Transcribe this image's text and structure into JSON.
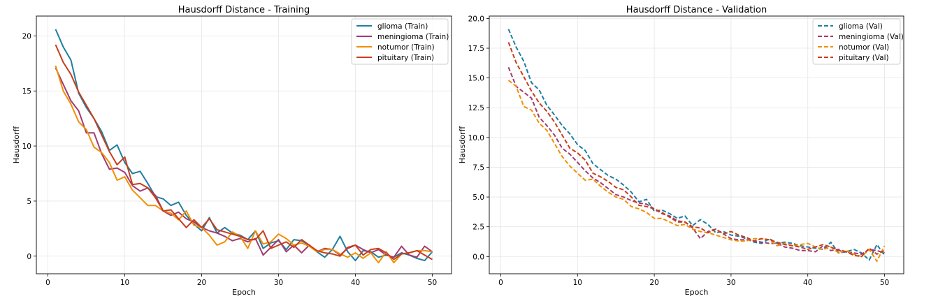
{
  "chart_data": [
    {
      "type": "line",
      "title": "Hausdorff Distance - Training",
      "xlabel": "Epoch",
      "ylabel": "Hausdorff",
      "xlim": [
        -1.5,
        52.5
      ],
      "ylim": [
        -1.6,
        21.8
      ],
      "xticks": [
        0,
        10,
        20,
        30,
        40,
        50
      ],
      "yticks": [
        0,
        5,
        10,
        15,
        20
      ],
      "grid": true,
      "legend_position": "top-right",
      "line_style": "solid",
      "x": [
        1,
        2,
        3,
        4,
        5,
        6,
        7,
        8,
        9,
        10,
        11,
        12,
        13,
        14,
        15,
        16,
        17,
        18,
        19,
        20,
        21,
        22,
        23,
        24,
        25,
        26,
        27,
        28,
        29,
        30,
        31,
        32,
        33,
        34,
        35,
        36,
        37,
        38,
        39,
        40,
        41,
        42,
        43,
        44,
        45,
        46,
        47,
        48,
        49,
        50
      ],
      "series": [
        {
          "name": "glioma (Train)",
          "color": "#1f7ea1",
          "values": [
            20.6,
            19.0,
            17.8,
            14.8,
            13.5,
            12.5,
            11.3,
            9.6,
            10.1,
            8.5,
            7.5,
            7.7,
            6.6,
            5.4,
            5.2,
            4.6,
            4.9,
            3.7,
            2.9,
            2.3,
            3.5,
            2.1,
            2.6,
            2.1,
            1.9,
            1.5,
            2.3,
            0.7,
            1.2,
            1.4,
            0.6,
            1.5,
            1.4,
            1.0,
            0.4,
            -0.1,
            0.6,
            1.8,
            0.4,
            -0.4,
            0.5,
            0.4,
            -0.1,
            0.1,
            -0.1,
            0.3,
            0.1,
            -0.2,
            -0.4,
            0.4
          ]
        },
        {
          "name": "meningioma (Train)",
          "color": "#a23b72",
          "values": [
            17.1,
            15.6,
            14.1,
            13.2,
            11.2,
            11.2,
            9.3,
            7.9,
            8.0,
            7.6,
            6.4,
            5.9,
            6.2,
            5.5,
            4.1,
            3.7,
            4.0,
            3.4,
            3.1,
            2.6,
            2.3,
            2.1,
            1.8,
            1.4,
            1.6,
            1.3,
            1.6,
            0.1,
            0.8,
            1.5,
            0.4,
            1.0,
            0.3,
            1.0,
            0.4,
            0.7,
            0.6,
            0.1,
            0.7,
            1.0,
            0.6,
            0.3,
            0.6,
            0.1,
            -0.1,
            0.9,
            0.1,
            -0.1,
            0.9,
            0.4
          ]
        },
        {
          "name": "notumor (Train)",
          "color": "#f18f01",
          "values": [
            17.3,
            15.0,
            13.8,
            12.2,
            11.5,
            9.9,
            9.4,
            8.5,
            6.9,
            7.2,
            6.0,
            5.3,
            4.6,
            4.6,
            4.1,
            3.9,
            3.3,
            4.1,
            2.8,
            2.6,
            1.9,
            1.0,
            1.3,
            2.2,
            1.8,
            0.7,
            2.3,
            1.1,
            1.3,
            2.0,
            1.6,
            1.0,
            1.2,
            0.9,
            0.4,
            0.6,
            0.6,
            0.2,
            -0.1,
            0.3,
            -0.2,
            0.3,
            -0.6,
            0.4,
            -0.6,
            0.2,
            0.3,
            0.5,
            0.5,
            0.4
          ]
        },
        {
          "name": "pituitary (Train)",
          "color": "#c73e1d",
          "values": [
            19.2,
            17.6,
            16.5,
            14.9,
            13.7,
            12.5,
            11.0,
            9.5,
            8.3,
            9.0,
            6.5,
            6.6,
            6.2,
            5.3,
            4.1,
            4.2,
            3.4,
            2.6,
            3.3,
            2.6,
            3.4,
            2.4,
            2.2,
            2.0,
            1.8,
            1.5,
            1.5,
            2.3,
            0.7,
            1.0,
            1.3,
            0.8,
            1.5,
            1.0,
            0.5,
            0.3,
            0.2,
            0.0,
            0.8,
            1.0,
            0.1,
            0.6,
            0.7,
            0.3,
            -0.3,
            0.2,
            0.3,
            0.5,
            0.1,
            -0.3
          ]
        }
      ]
    },
    {
      "type": "line",
      "title": "Hausdorff Distance - Validation",
      "xlabel": "Epoch",
      "ylabel": "Hausdorff",
      "xlim": [
        -1.5,
        52.5
      ],
      "ylim": [
        -1.45,
        20.2
      ],
      "xticks": [
        0,
        10,
        20,
        30,
        40,
        50
      ],
      "yticks": [
        0.0,
        2.5,
        5.0,
        7.5,
        10.0,
        12.5,
        15.0,
        17.5,
        20.0
      ],
      "ytick_labels": [
        "0.0",
        "2.5",
        "5.0",
        "7.5",
        "10.0",
        "12.5",
        "15.0",
        "17.5",
        "20.0"
      ],
      "grid": true,
      "legend_position": "top-right",
      "line_style": "dashed",
      "x": [
        1,
        2,
        3,
        4,
        5,
        6,
        7,
        8,
        9,
        10,
        11,
        12,
        13,
        14,
        15,
        16,
        17,
        18,
        19,
        20,
        21,
        22,
        23,
        24,
        25,
        26,
        27,
        28,
        29,
        30,
        31,
        32,
        33,
        34,
        35,
        36,
        37,
        38,
        39,
        40,
        41,
        42,
        43,
        44,
        45,
        46,
        47,
        48,
        49,
        50
      ],
      "series": [
        {
          "name": "glioma (Val)",
          "color": "#1f7ea1",
          "values": [
            19.1,
            17.6,
            16.4,
            14.6,
            14.0,
            12.7,
            11.9,
            11.0,
            10.3,
            9.4,
            8.9,
            7.8,
            7.3,
            6.8,
            6.5,
            6.0,
            5.4,
            4.6,
            4.8,
            3.8,
            3.9,
            3.6,
            3.2,
            3.4,
            2.6,
            3.1,
            2.7,
            2.0,
            2.1,
            1.8,
            1.7,
            1.5,
            1.2,
            1.1,
            1.5,
            1.1,
            1.2,
            1.1,
            0.9,
            0.8,
            0.7,
            0.6,
            1.2,
            0.3,
            0.4,
            0.6,
            0.3,
            -0.3,
            1.0,
            0.1
          ]
        },
        {
          "name": "meningioma (Val)",
          "color": "#a23b72",
          "values": [
            15.9,
            14.3,
            13.8,
            13.3,
            11.7,
            11.0,
            10.2,
            9.1,
            8.6,
            7.9,
            7.2,
            6.6,
            6.2,
            5.7,
            5.2,
            5.0,
            4.7,
            4.5,
            4.4,
            4.0,
            3.6,
            3.4,
            3.0,
            2.9,
            2.4,
            1.5,
            2.1,
            2.3,
            1.9,
            1.5,
            1.4,
            1.4,
            1.3,
            1.2,
            1.1,
            1.1,
            0.8,
            0.7,
            0.5,
            0.5,
            0.4,
            0.9,
            0.5,
            0.6,
            0.4,
            0.3,
            0.2,
            0.6,
            0.5,
            0.3
          ]
        },
        {
          "name": "notumor (Val)",
          "color": "#f18f01",
          "values": [
            14.8,
            14.3,
            12.6,
            12.3,
            11.2,
            10.6,
            9.5,
            8.4,
            7.6,
            7.0,
            6.4,
            6.5,
            5.9,
            5.4,
            5.0,
            4.8,
            4.2,
            4.0,
            3.7,
            3.2,
            3.2,
            2.9,
            2.6,
            2.7,
            2.3,
            2.1,
            2.0,
            1.8,
            1.6,
            1.4,
            1.3,
            1.3,
            1.5,
            1.5,
            1.4,
            0.9,
            1.1,
            0.9,
            1.0,
            1.1,
            0.8,
            0.6,
            0.8,
            0.3,
            0.5,
            0.2,
            0.0,
            0.6,
            -0.4,
            0.9
          ]
        },
        {
          "name": "pituitary (Val)",
          "color": "#c73e1d",
          "values": [
            18.0,
            16.3,
            15.1,
            13.9,
            12.9,
            12.2,
            11.3,
            10.2,
            9.1,
            8.7,
            8.1,
            7.0,
            6.7,
            6.3,
            5.8,
            5.6,
            5.0,
            4.3,
            4.2,
            4.0,
            3.7,
            3.3,
            2.9,
            2.9,
            2.5,
            2.4,
            2.0,
            2.3,
            1.9,
            2.1,
            1.8,
            1.6,
            1.3,
            1.5,
            1.4,
            1.2,
            1.0,
            0.9,
            0.8,
            0.6,
            0.8,
            1.0,
            0.8,
            0.5,
            0.4,
            0.1,
            0.0,
            0.7,
            0.2,
            0.5
          ]
        }
      ]
    }
  ]
}
